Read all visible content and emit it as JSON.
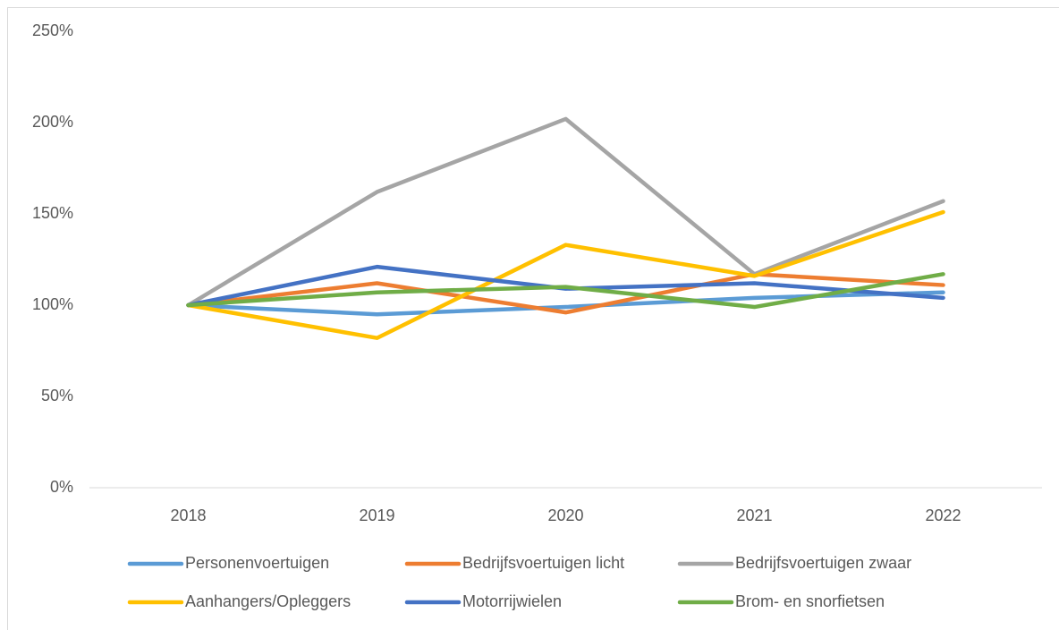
{
  "chart_data": {
    "type": "line",
    "categories": [
      "2018",
      "2019",
      "2020",
      "2021",
      "2022"
    ],
    "series": [
      {
        "name": "Personenvoertuigen",
        "color": "#5b9bd5",
        "values": [
          100,
          95,
          99,
          104,
          107
        ]
      },
      {
        "name": "Bedrijfsvoertuigen licht",
        "color": "#ed7d31",
        "values": [
          100,
          112,
          96,
          117,
          111
        ]
      },
      {
        "name": "Bedrijfsvoertuigen zwaar",
        "color": "#a5a5a5",
        "values": [
          100,
          162,
          202,
          117,
          157
        ]
      },
      {
        "name": "Aanhangers/Opleggers",
        "color": "#ffc000",
        "values": [
          100,
          82,
          133,
          116,
          151
        ]
      },
      {
        "name": "Motorrijwielen",
        "color": "#4472c4",
        "values": [
          100,
          121,
          109,
          112,
          104
        ]
      },
      {
        "name": "Brom- en snorfietsen",
        "color": "#70ad47",
        "values": [
          100,
          107,
          110,
          99,
          117
        ]
      }
    ],
    "ylim": [
      0,
      250
    ],
    "yticks": [
      {
        "value": 0,
        "label": "0%"
      },
      {
        "value": 50,
        "label": "50%"
      },
      {
        "value": 100,
        "label": "100%"
      },
      {
        "value": 150,
        "label": "150%"
      },
      {
        "value": 200,
        "label": "200%"
      },
      {
        "value": 250,
        "label": "250%"
      }
    ],
    "grid": false
  }
}
